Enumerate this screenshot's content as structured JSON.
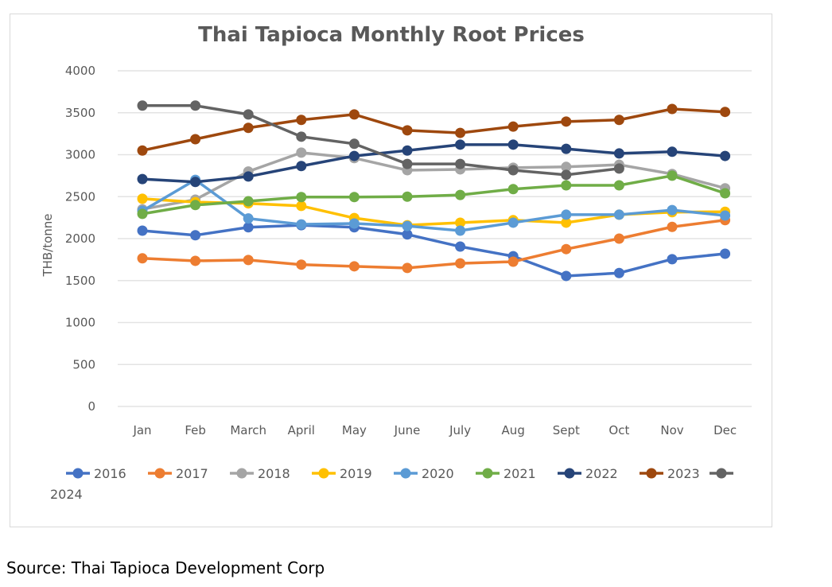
{
  "chart_data": {
    "type": "line",
    "title": "Thai Tapioca Monthly Root Prices",
    "xlabel": "",
    "ylabel": "THB/tonne",
    "ylim": [
      0,
      4000
    ],
    "yticks": [
      0,
      500,
      1000,
      1500,
      2000,
      2500,
      3000,
      3500,
      4000
    ],
    "grid": true,
    "legend": "bottom",
    "categories": [
      "Jan",
      "Feb",
      "March",
      "April",
      "May",
      "June",
      "July",
      "Aug",
      "Sept",
      "Oct",
      "Nov",
      "Dec"
    ],
    "series": [
      {
        "name": "2016",
        "color": "#4472c4",
        "values": [
          2095,
          2040,
          2135,
          2160,
          2135,
          2050,
          1905,
          1790,
          1555,
          1590,
          1755,
          1820
        ]
      },
      {
        "name": "2017",
        "color": "#ed7d31",
        "values": [
          1765,
          1735,
          1745,
          1690,
          1670,
          1650,
          1705,
          1725,
          1875,
          2000,
          2140,
          2220
        ]
      },
      {
        "name": "2018",
        "color": "#a5a5a5",
        "values": [
          2350,
          2465,
          2800,
          3025,
          2960,
          2815,
          2825,
          2845,
          2855,
          2880,
          2770,
          2600
        ]
      },
      {
        "name": "2019",
        "color": "#ffc000",
        "values": [
          2475,
          2435,
          2420,
          2390,
          2245,
          2160,
          2190,
          2220,
          2190,
          2285,
          2315,
          2320
        ]
      },
      {
        "name": "2020",
        "color": "#5b9bd5",
        "values": [
          2330,
          2700,
          2240,
          2170,
          2180,
          2150,
          2095,
          2190,
          2285,
          2285,
          2340,
          2275
        ]
      },
      {
        "name": "2021",
        "color": "#70ad47",
        "values": [
          2295,
          2400,
          2445,
          2495,
          2495,
          2500,
          2520,
          2590,
          2635,
          2635,
          2750,
          2540
        ]
      },
      {
        "name": "2022",
        "color": "#264478",
        "values": [
          2710,
          2675,
          2740,
          2865,
          2985,
          3050,
          3120,
          3120,
          3070,
          3015,
          3035,
          2985
        ]
      },
      {
        "name": "2023",
        "color": "#9e480e",
        "values": [
          3050,
          3185,
          3320,
          3415,
          3480,
          3290,
          3260,
          3335,
          3395,
          3415,
          3545,
          3510
        ]
      },
      {
        "name": "2024",
        "color": "#636363",
        "values": [
          3585,
          3585,
          3480,
          3215,
          3130,
          2890,
          2890,
          2815,
          2760,
          2835,
          null,
          null
        ]
      }
    ]
  },
  "source": "Source: Thai Tapioca Development Corp"
}
